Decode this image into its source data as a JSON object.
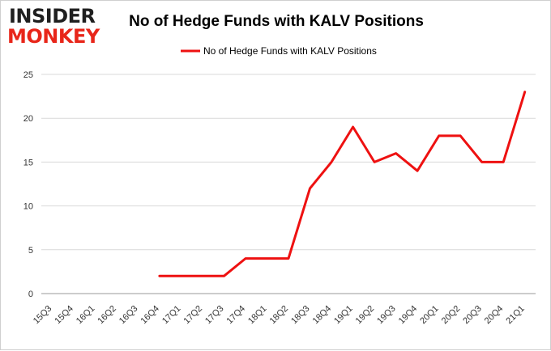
{
  "logo": {
    "line1": "INSIDER",
    "line2": "MONKEY"
  },
  "chart_data": {
    "type": "line",
    "title": "No of Hedge Funds with KALV Positions",
    "xlabel": "",
    "ylabel": "",
    "categories": [
      "15Q3",
      "15Q4",
      "16Q1",
      "16Q2",
      "16Q3",
      "16Q4",
      "17Q1",
      "17Q2",
      "17Q3",
      "17Q4",
      "18Q1",
      "18Q2",
      "18Q3",
      "18Q4",
      "19Q1",
      "19Q2",
      "19Q3",
      "19Q4",
      "20Q1",
      "20Q2",
      "20Q3",
      "20Q4",
      "21Q1"
    ],
    "series": [
      {
        "name": "No of Hedge Funds with KALV Positions",
        "color": "#ee1111",
        "values": [
          null,
          null,
          null,
          null,
          null,
          2,
          2,
          2,
          2,
          4,
          4,
          4,
          12,
          15,
          19,
          15,
          16,
          14,
          18,
          18,
          15,
          15,
          23
        ]
      }
    ],
    "ylim": [
      0,
      25
    ],
    "yticks": [
      0,
      5,
      10,
      15,
      20,
      25
    ],
    "grid": true,
    "legend": "top-center"
  }
}
